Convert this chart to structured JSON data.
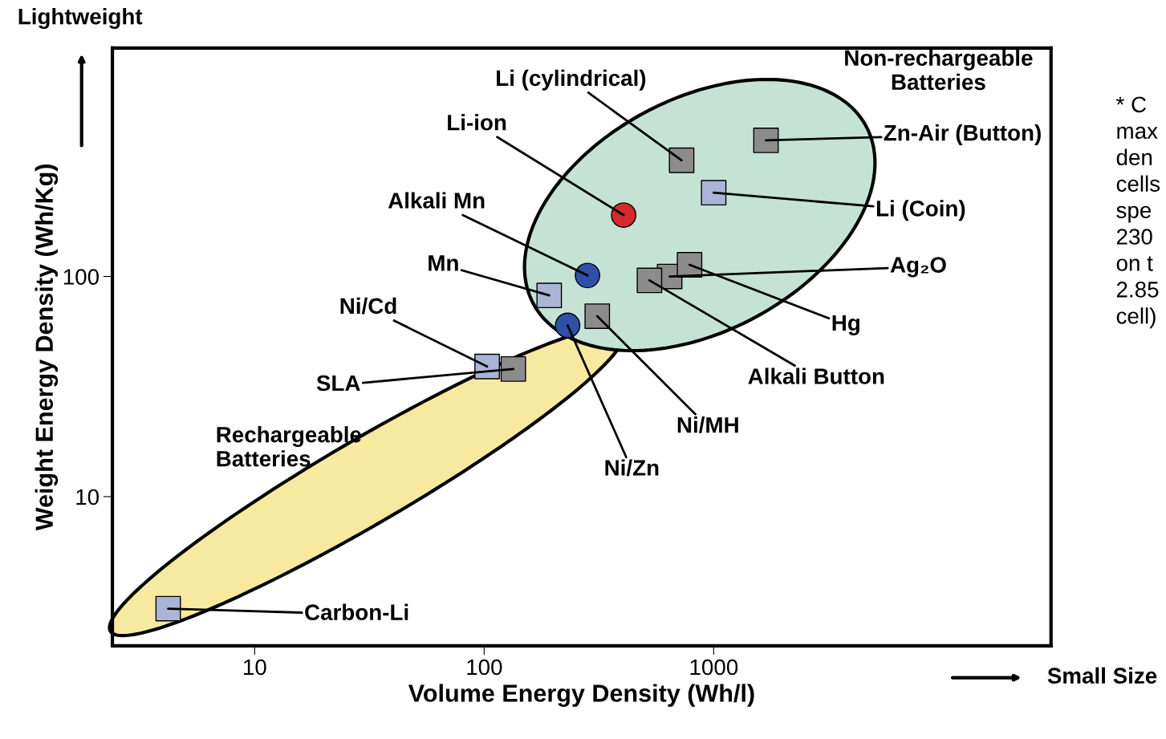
{
  "chart_data": {
    "type": "scatter",
    "xlabel": "Volume Energy Density (Wh/l)",
    "ylabel": "Weight Energy Density (Wh/Kg)",
    "log": "xy",
    "xlim": [
      2.4,
      29500
    ],
    "ylim": [
      2.1,
      1090
    ],
    "xticks": [
      10,
      100,
      1000
    ],
    "yticks": [
      10,
      100
    ],
    "grid": false,
    "legend": false,
    "series": [
      {
        "marker": "circle",
        "colors": [
          "#d42a2a",
          "#2f4fa8",
          "#2f4fa8"
        ],
        "x": [
          405,
          282,
          231
        ],
        "values": [
          190,
          101,
          60
        ]
      },
      {
        "marker": "square",
        "color": "#aab4d6",
        "x": [
          192,
          103,
          4.2,
          1000
        ],
        "values": [
          82,
          39,
          3.1,
          240
        ]
      },
      {
        "marker": "square",
        "color": "#8c8c8c",
        "x": [
          134,
          1690,
          725,
          643,
          785,
          525,
          311
        ],
        "values": [
          38,
          415,
          337,
          100,
          113,
          96,
          66
        ]
      }
    ],
    "annotations": [
      {
        "text": "Li-ion",
        "x": 405,
        "y": 190
      },
      {
        "text": "Alkali Mn",
        "x": 282,
        "y": 101
      },
      {
        "text": "Ni/Zn",
        "x": 231,
        "y": 60
      },
      {
        "text": "Mn",
        "x": 192,
        "y": 82
      },
      {
        "text": "Ni/Cd",
        "x": 103,
        "y": 39
      },
      {
        "text": "SLA",
        "x": 134,
        "y": 38
      },
      {
        "text": "Carbon-Li",
        "x": 4.2,
        "y": 3.1
      },
      {
        "text": "Li (Coin)",
        "x": 1000,
        "y": 240
      },
      {
        "text": "Zn-Air (Button)",
        "x": 1690,
        "y": 415
      },
      {
        "text": "Li (cylindrical)",
        "x": 725,
        "y": 337
      },
      {
        "text": "Ag₂O",
        "x": 643,
        "y": 100
      },
      {
        "text": "Hg",
        "x": 785,
        "y": 113
      },
      {
        "text": "Ni/MH",
        "x": 311,
        "y": 66
      },
      {
        "text": "Alkali Button",
        "x": 525,
        "y": 96
      },
      "Rechargeable\nBatteries",
      "Non-rechargeable\nBatteries",
      "Lightweight",
      "Small Size",
      "* C\nmax\nden\ncells\nspe\n230\non t\n2.85\ncell)"
    ]
  }
}
